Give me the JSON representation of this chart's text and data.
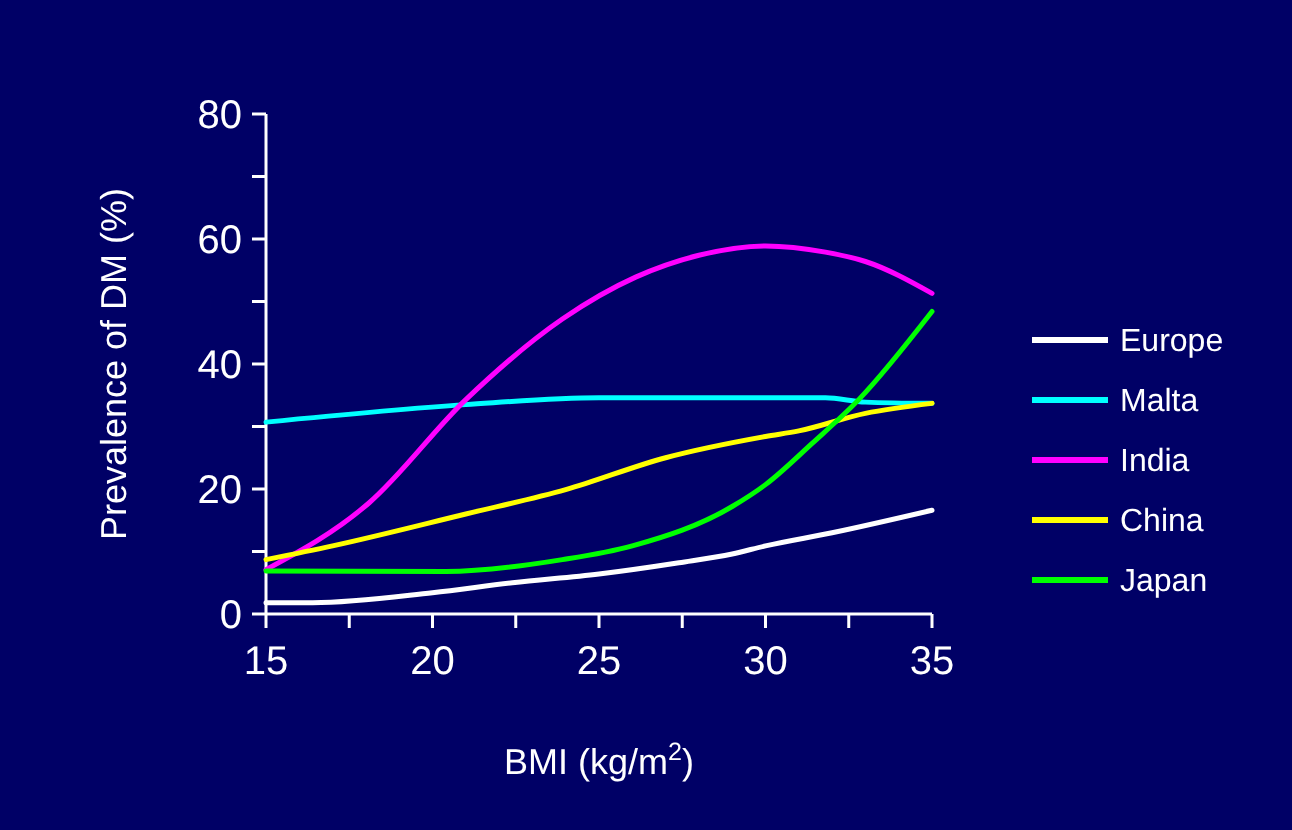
{
  "chart_data": {
    "type": "line",
    "xlabel": "BMI (kg/m$^{2}$)",
    "ylabel": "Prevalence of DM (%)",
    "xlim": [
      15,
      35
    ],
    "ylim": [
      0,
      80
    ],
    "xticks": [
      15,
      {
        "value": 17.5,
        "label": null
      },
      20,
      {
        "value": 22.5,
        "label": null
      },
      25,
      {
        "value": 27.5,
        "label": null
      },
      30,
      {
        "value": 32.5,
        "label": null
      },
      35
    ],
    "yticks": [
      0,
      {
        "value": 10,
        "label": null
      },
      20,
      {
        "value": 30,
        "label": null
      },
      40,
      {
        "value": 50,
        "label": null
      },
      60,
      {
        "value": 70,
        "label": null
      },
      80
    ],
    "grid": false,
    "legend": "right",
    "marker": "none",
    "line_style": "solid",
    "series": [
      {
        "name": "Europe",
        "color": "#ffffff",
        "x": [
          15,
          16.4,
          20,
          22.4,
          25,
          27.4,
          29,
          30,
          32,
          35
        ],
        "values": [
          1.8,
          1.8,
          3.4,
          5,
          6.4,
          8.2,
          9.6,
          10.9,
          13,
          16.6
        ]
      },
      {
        "name": "Malta",
        "color": "#00ffff",
        "x": [
          15,
          21,
          25,
          31.8,
          33,
          35
        ],
        "values": [
          30.7,
          33.5,
          34.6,
          34.6,
          33.9,
          33.7
        ]
      },
      {
        "name": "India",
        "color": "#ff00ff",
        "x": [
          15,
          18.1,
          21,
          23.9,
          26.1,
          28,
          30,
          31.8,
          33,
          35
        ],
        "values": [
          7.1,
          17.8,
          34.3,
          47.2,
          53.9,
          57.4,
          58.9,
          57.9,
          56.4,
          51.3
        ]
      },
      {
        "name": "China",
        "color": "#ffff00",
        "x": [
          15,
          17,
          21,
          24,
          27,
          30,
          31,
          33,
          35
        ],
        "values": [
          8.7,
          10.9,
          16,
          19.9,
          25,
          28.4,
          29.3,
          32.1,
          33.7
        ]
      },
      {
        "name": "Japan",
        "color": "#00ff00",
        "x": [
          15,
          20.4,
          23.9,
          26,
          29,
          30,
          31.4,
          32.8,
          35
        ],
        "values": [
          6.9,
          6.8,
          8.7,
          10.9,
          17.2,
          20.7,
          27.3,
          34.3,
          48.4
        ]
      }
    ]
  }
}
